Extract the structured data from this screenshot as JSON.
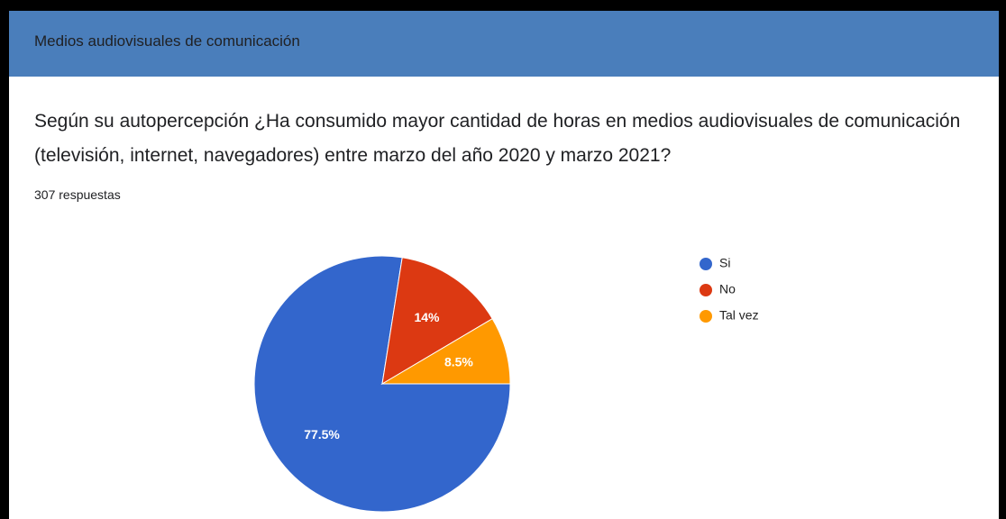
{
  "header": {
    "title": "Medios audiovisuales de comunicación"
  },
  "chart_data": {
    "type": "pie",
    "title": "Según su autopercepción ¿Ha consumido mayor cantidad de horas en medios audiovisuales de comunicación (televisión, internet, navegadores) entre marzo del año 2020 y marzo 2021?",
    "subtitle": "307 respuestas",
    "categories": [
      "Si",
      "No",
      "Tal vez"
    ],
    "values": [
      77.5,
      14,
      8.5
    ],
    "value_labels": [
      "77.5%",
      "14%",
      "8.5%"
    ],
    "colors": [
      "#3366cc",
      "#dc3912",
      "#ff9900"
    ],
    "legend": "right"
  }
}
